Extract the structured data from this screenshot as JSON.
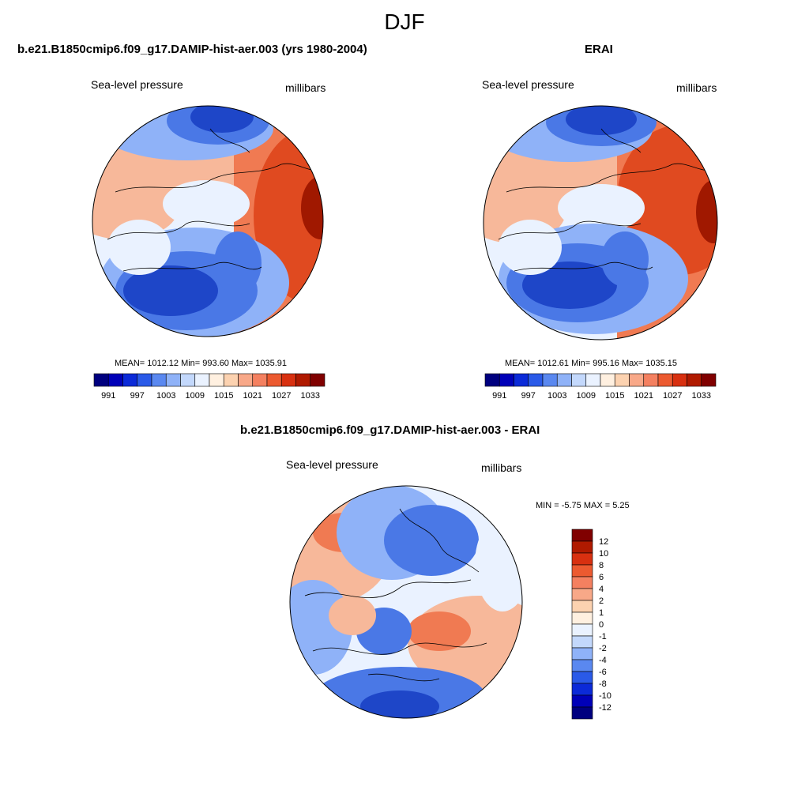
{
  "figure_title": "DJF",
  "palette": [
    "#00007f",
    "#0000b8",
    "#0b2ad8",
    "#2a5ae8",
    "#5a88f0",
    "#8fb2f8",
    "#c3d8fc",
    "#eaf2ff",
    "#fff0e0",
    "#fcd2b0",
    "#f8a888",
    "#f48060",
    "#ec5a30",
    "#d83010",
    "#b01a00",
    "#800000"
  ],
  "map_colors": {
    "deep_low": "#1e46c8",
    "low": "#4a78e6",
    "mid_low": "#8fb2f8",
    "neutral": "#eaf2ff",
    "mid_high": "#f7b89a",
    "high": "#f07a52",
    "very_high": "#e04a20",
    "extreme": "#a01800"
  },
  "panels": [
    {
      "title": "b.e21.B1850cmip6.f09_g17.DAMIP-hist-aer.003 (yrs 1980-2004)",
      "left_label": "Sea-level pressure",
      "right_label": "millibars",
      "stats": "MEAN= 1012.12  Min= 993.60  Max= 1035.91",
      "colorbar_ticks": [
        "991",
        "997",
        "1003",
        "1009",
        "1015",
        "1021",
        "1027",
        "1033"
      ]
    },
    {
      "title": "ERAI",
      "left_label": "Sea-level pressure",
      "right_label": "millibars",
      "stats": "MEAN= 1012.61  Min= 995.16  Max= 1035.15",
      "colorbar_ticks": [
        "991",
        "997",
        "1003",
        "1009",
        "1015",
        "1021",
        "1027",
        "1033"
      ]
    },
    {
      "title": "b.e21.B1850cmip6.f09_g17.DAMIP-hist-aer.003 - ERAI",
      "left_label": "Sea-level pressure",
      "right_label": "millibars",
      "stats": "MIN =  -5.75 MAX =   5.25",
      "colorbar_ticks": [
        "12",
        "10",
        "8",
        "6",
        "4",
        "2",
        "1",
        "0",
        "-1",
        "-2",
        "-4",
        "-6",
        "-8",
        "-10",
        "-12"
      ]
    }
  ]
}
